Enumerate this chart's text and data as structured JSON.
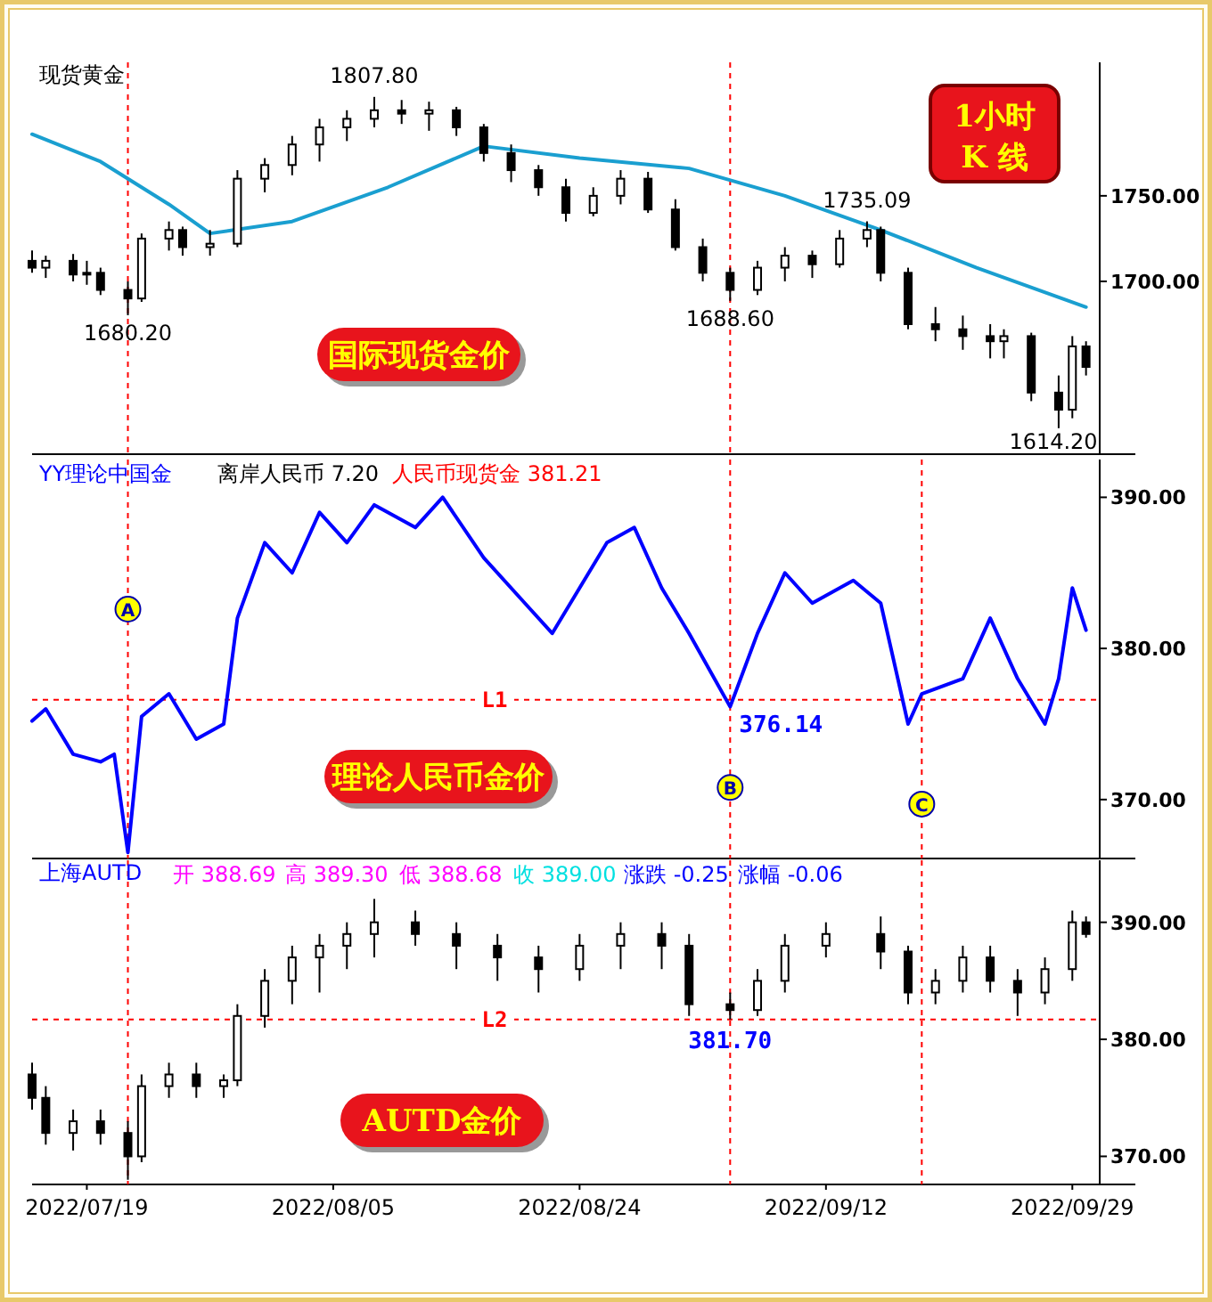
{
  "chart_data": [
    {
      "type": "candlestick",
      "title": "现货黄金",
      "xlim": [
        "2022-07-15",
        "2022-10-01"
      ],
      "ylim": [
        1599,
        1828
      ],
      "yticks": [
        {
          "value": 1700,
          "label": "1700.00"
        },
        {
          "value": 1750,
          "label": "1750.00"
        }
      ],
      "tick_labels": "y",
      "x": [
        "2022-07-15",
        "2022-07-16",
        "2022-07-18",
        "2022-07-19",
        "2022-07-20",
        "2022-07-22",
        "2022-07-23",
        "2022-07-25",
        "2022-07-26",
        "2022-07-28",
        "2022-07-30",
        "2022-08-01",
        "2022-08-03",
        "2022-08-05",
        "2022-08-07",
        "2022-08-09",
        "2022-08-11",
        "2022-08-13",
        "2022-08-15",
        "2022-08-17",
        "2022-08-19",
        "2022-08-21",
        "2022-08-23",
        "2022-08-25",
        "2022-08-27",
        "2022-08-29",
        "2022-08-31",
        "2022-09-02",
        "2022-09-04",
        "2022-09-06",
        "2022-09-08",
        "2022-09-10",
        "2022-09-12",
        "2022-09-14",
        "2022-09-15",
        "2022-09-17",
        "2022-09-19",
        "2022-09-21",
        "2022-09-23",
        "2022-09-24",
        "2022-09-26",
        "2022-09-28",
        "2022-09-29",
        "2022-09-30"
      ],
      "ohlc": [
        [
          1712,
          1718,
          1705,
          1708
        ],
        [
          1708,
          1715,
          1702,
          1712
        ],
        [
          1712,
          1716,
          1700,
          1704
        ],
        [
          1704,
          1712,
          1698,
          1705
        ],
        [
          1705,
          1708,
          1692,
          1695
        ],
        [
          1695,
          1700,
          1680.2,
          1690
        ],
        [
          1690,
          1728,
          1688,
          1725
        ],
        [
          1725,
          1735,
          1718,
          1730
        ],
        [
          1730,
          1732,
          1715,
          1720
        ],
        [
          1720,
          1730,
          1715,
          1722
        ],
        [
          1722,
          1765,
          1720,
          1760
        ],
        [
          1760,
          1772,
          1752,
          1768
        ],
        [
          1768,
          1785,
          1762,
          1780
        ],
        [
          1780,
          1795,
          1770,
          1790
        ],
        [
          1790,
          1800,
          1782,
          1795
        ],
        [
          1795,
          1807.8,
          1790,
          1800
        ],
        [
          1800,
          1806,
          1792,
          1798
        ],
        [
          1798,
          1805,
          1788,
          1800
        ],
        [
          1800,
          1802,
          1785,
          1790
        ],
        [
          1790,
          1792,
          1770,
          1775
        ],
        [
          1775,
          1780,
          1758,
          1765
        ],
        [
          1765,
          1768,
          1750,
          1755
        ],
        [
          1755,
          1760,
          1735,
          1740
        ],
        [
          1740,
          1755,
          1738,
          1750
        ],
        [
          1750,
          1765,
          1745,
          1760
        ],
        [
          1760,
          1764,
          1740,
          1742
        ],
        [
          1742,
          1748,
          1718,
          1720
        ],
        [
          1720,
          1725,
          1700,
          1705
        ],
        [
          1705,
          1708,
          1688.6,
          1695
        ],
        [
          1695,
          1712,
          1692,
          1708
        ],
        [
          1708,
          1720,
          1700,
          1715
        ],
        [
          1715,
          1718,
          1702,
          1710
        ],
        [
          1710,
          1730,
          1708,
          1725
        ],
        [
          1725,
          1735.09,
          1720,
          1730
        ],
        [
          1730,
          1732,
          1700,
          1705
        ],
        [
          1705,
          1708,
          1672,
          1675
        ],
        [
          1675,
          1685,
          1665,
          1672
        ],
        [
          1672,
          1680,
          1660,
          1668
        ],
        [
          1668,
          1675,
          1655,
          1665
        ],
        [
          1665,
          1672,
          1655,
          1668
        ],
        [
          1668,
          1670,
          1630,
          1635
        ],
        [
          1635,
          1645,
          1614.2,
          1625
        ],
        [
          1625,
          1668,
          1620,
          1662
        ],
        [
          1662,
          1665,
          1645,
          1650
        ]
      ],
      "series": [
        {
          "type": "line",
          "color": "#1a9fd0",
          "x": [
            "2022-07-15",
            "2022-07-20",
            "2022-07-25",
            "2022-07-28",
            "2022-08-03",
            "2022-08-10",
            "2022-08-17",
            "2022-08-24",
            "2022-09-01",
            "2022-09-08",
            "2022-09-15",
            "2022-09-22",
            "2022-09-30"
          ],
          "values": [
            1786,
            1770,
            1745,
            1728,
            1735,
            1755,
            1779,
            1772,
            1766,
            1750,
            1730,
            1708,
            1685
          ]
        }
      ],
      "ref_lines": [
        {
          "axis": "x",
          "value": "2022-07-22",
          "color": "#ff0000",
          "line_style": "dashed"
        },
        {
          "axis": "x",
          "value": "2022-09-04",
          "color": "#ff0000",
          "line_style": "dashed"
        }
      ],
      "annotations": [
        "1小时 K 线",
        "国际现货金价",
        {
          "text": "1807.80",
          "x": "2022-08-09",
          "y": 1807.8
        },
        {
          "text": "1680.20",
          "x": "2022-07-22",
          "y": 1680.2
        },
        {
          "text": "1688.60",
          "x": "2022-09-04",
          "y": 1688.6
        },
        {
          "text": "1735.09",
          "x": "2022-09-14",
          "y": 1735.09
        },
        {
          "text": "1614.20",
          "x": "2022-09-28",
          "y": 1614.2
        }
      ]
    },
    {
      "type": "line",
      "xlim": [
        "2022-07-15",
        "2022-10-01"
      ],
      "ylim": [
        366.1,
        392.5
      ],
      "yticks": [
        {
          "value": 370,
          "label": "370.00"
        },
        {
          "value": 380,
          "label": "380.00"
        },
        {
          "value": 390,
          "label": "390.00"
        }
      ],
      "tick_labels": "y",
      "series": [
        {
          "name": "YY理论中国金",
          "color": "#0000ff",
          "x": [
            "2022-07-15",
            "2022-07-16",
            "2022-07-18",
            "2022-07-20",
            "2022-07-21",
            "2022-07-22",
            "2022-07-23",
            "2022-07-25",
            "2022-07-27",
            "2022-07-29",
            "2022-07-30",
            "2022-08-01",
            "2022-08-03",
            "2022-08-05",
            "2022-08-07",
            "2022-08-09",
            "2022-08-12",
            "2022-08-14",
            "2022-08-17",
            "2022-08-20",
            "2022-08-22",
            "2022-08-24",
            "2022-08-26",
            "2022-08-28",
            "2022-08-30",
            "2022-09-01",
            "2022-09-04",
            "2022-09-06",
            "2022-09-08",
            "2022-09-10",
            "2022-09-13",
            "2022-09-15",
            "2022-09-17",
            "2022-09-18",
            "2022-09-21",
            "2022-09-23",
            "2022-09-25",
            "2022-09-27",
            "2022-09-28",
            "2022-09-29",
            "2022-09-30"
          ],
          "values": [
            375.2,
            376,
            373,
            372.5,
            373,
            366.5,
            375.5,
            377,
            374,
            375,
            382,
            387,
            385,
            389,
            387,
            389.5,
            388,
            390,
            386,
            383,
            381,
            384,
            387,
            388,
            384,
            381,
            376.14,
            381,
            385,
            383,
            384.5,
            383,
            375,
            377,
            378,
            382,
            378,
            375,
            378,
            384,
            381.21
          ]
        }
      ],
      "ref_lines": [
        {
          "axis": "x",
          "value": "2022-07-22",
          "color": "#ff0000",
          "line_style": "dashed"
        },
        {
          "axis": "x",
          "value": "2022-09-04",
          "color": "#ff0000",
          "line_style": "dashed"
        },
        {
          "axis": "x",
          "value": "2022-09-18",
          "color": "#ff0000",
          "line_style": "dashed"
        },
        {
          "axis": "y",
          "value": 376.6,
          "label": "L1",
          "color": "#ff0000",
          "line_style": "dashed"
        }
      ],
      "annotations": [
        "离岸人民币 7.20",
        "人民币现货金 381.21",
        "理论人民币金价",
        {
          "text": "A",
          "x": "2022-07-22",
          "y": 382.6
        },
        {
          "text": "B",
          "x": "2022-09-04",
          "y": 370.8
        },
        {
          "text": "C",
          "x": "2022-09-18",
          "y": 369.7
        },
        {
          "text": "376.14",
          "x": "2022-09-04",
          "y": 376.14
        }
      ]
    },
    {
      "type": "candlestick",
      "title": "上海AUTD",
      "xlim": [
        "2022-07-15",
        "2022-10-01"
      ],
      "ylim": [
        367.6,
        395.3
      ],
      "yticks": [
        {
          "value": 370,
          "label": "370.00"
        },
        {
          "value": 380,
          "label": "380.00"
        },
        {
          "value": 390,
          "label": "390.00"
        }
      ],
      "xticks": [
        {
          "value": "2022-07-19",
          "label": "2022/07/19"
        },
        {
          "value": "2022-08-06",
          "label": "2022/08/05"
        },
        {
          "value": "2022-08-24",
          "label": "2022/08/24"
        },
        {
          "value": "2022-09-11",
          "label": "2022/09/12"
        },
        {
          "value": "2022-09-29",
          "label": "2022/09/29"
        }
      ],
      "x": [
        "2022-07-15",
        "2022-07-16",
        "2022-07-18",
        "2022-07-20",
        "2022-07-22",
        "2022-07-23",
        "2022-07-25",
        "2022-07-27",
        "2022-07-29",
        "2022-07-30",
        "2022-08-01",
        "2022-08-03",
        "2022-08-05",
        "2022-08-07",
        "2022-08-09",
        "2022-08-12",
        "2022-08-15",
        "2022-08-18",
        "2022-08-21",
        "2022-08-24",
        "2022-08-27",
        "2022-08-30",
        "2022-09-01",
        "2022-09-04",
        "2022-09-06",
        "2022-09-08",
        "2022-09-11",
        "2022-09-15",
        "2022-09-17",
        "2022-09-19",
        "2022-09-21",
        "2022-09-23",
        "2022-09-25",
        "2022-09-27",
        "2022-09-29",
        "2022-09-30"
      ],
      "ohlc": [
        [
          377,
          378,
          374,
          375
        ],
        [
          375,
          376,
          371,
          372
        ],
        [
          372,
          374,
          370.5,
          373
        ],
        [
          373,
          374,
          371,
          372
        ],
        [
          372,
          373,
          368,
          370
        ],
        [
          370,
          377,
          369.5,
          376
        ],
        [
          376,
          378,
          375,
          377
        ],
        [
          377,
          378,
          375,
          376
        ],
        [
          376,
          377,
          375,
          376.5
        ],
        [
          376.5,
          383,
          376,
          382
        ],
        [
          382,
          386,
          381,
          385
        ],
        [
          385,
          388,
          383,
          387
        ],
        [
          387,
          389,
          384,
          388
        ],
        [
          388,
          390,
          386,
          389
        ],
        [
          389,
          392,
          387,
          390
        ],
        [
          390,
          391,
          388,
          389
        ],
        [
          389,
          390,
          386,
          388
        ],
        [
          388,
          389,
          385,
          387
        ],
        [
          387,
          388,
          384,
          386
        ],
        [
          386,
          389,
          385,
          388
        ],
        [
          388,
          390,
          386,
          389
        ],
        [
          389,
          390,
          386,
          388
        ],
        [
          388,
          389,
          382,
          383
        ],
        [
          383,
          384,
          381.7,
          382.5
        ],
        [
          382.5,
          386,
          382,
          385
        ],
        [
          385,
          389,
          384,
          388
        ],
        [
          388,
          390,
          387,
          389
        ],
        [
          389,
          390.5,
          386,
          387.5
        ],
        [
          387.5,
          388,
          383,
          384
        ],
        [
          384,
          386,
          383,
          385
        ],
        [
          385,
          388,
          384,
          387
        ],
        [
          387,
          388,
          384,
          385
        ],
        [
          385,
          386,
          382,
          384
        ],
        [
          384,
          387,
          383,
          386
        ],
        [
          386,
          391,
          385,
          390
        ],
        [
          390,
          390.5,
          388.69,
          389
        ]
      ],
      "ref_lines": [
        {
          "axis": "x",
          "value": "2022-07-22",
          "color": "#ff0000",
          "line_style": "dashed"
        },
        {
          "axis": "x",
          "value": "2022-09-04",
          "color": "#ff0000",
          "line_style": "dashed"
        },
        {
          "axis": "x",
          "value": "2022-09-18",
          "color": "#ff0000",
          "line_style": "dashed"
        },
        {
          "axis": "y",
          "value": 381.7,
          "label": "L2",
          "color": "#ff0000",
          "line_style": "dashed"
        }
      ],
      "annotations": [
        "开 388.69",
        "高 389.30",
        "低 388.68",
        "收 389.00",
        "涨跌 -0.25",
        "涨幅 -0.06",
        "AUTD金价",
        {
          "text": "381.70",
          "x": "2022-09-04",
          "y": 381.7
        }
      ]
    }
  ]
}
